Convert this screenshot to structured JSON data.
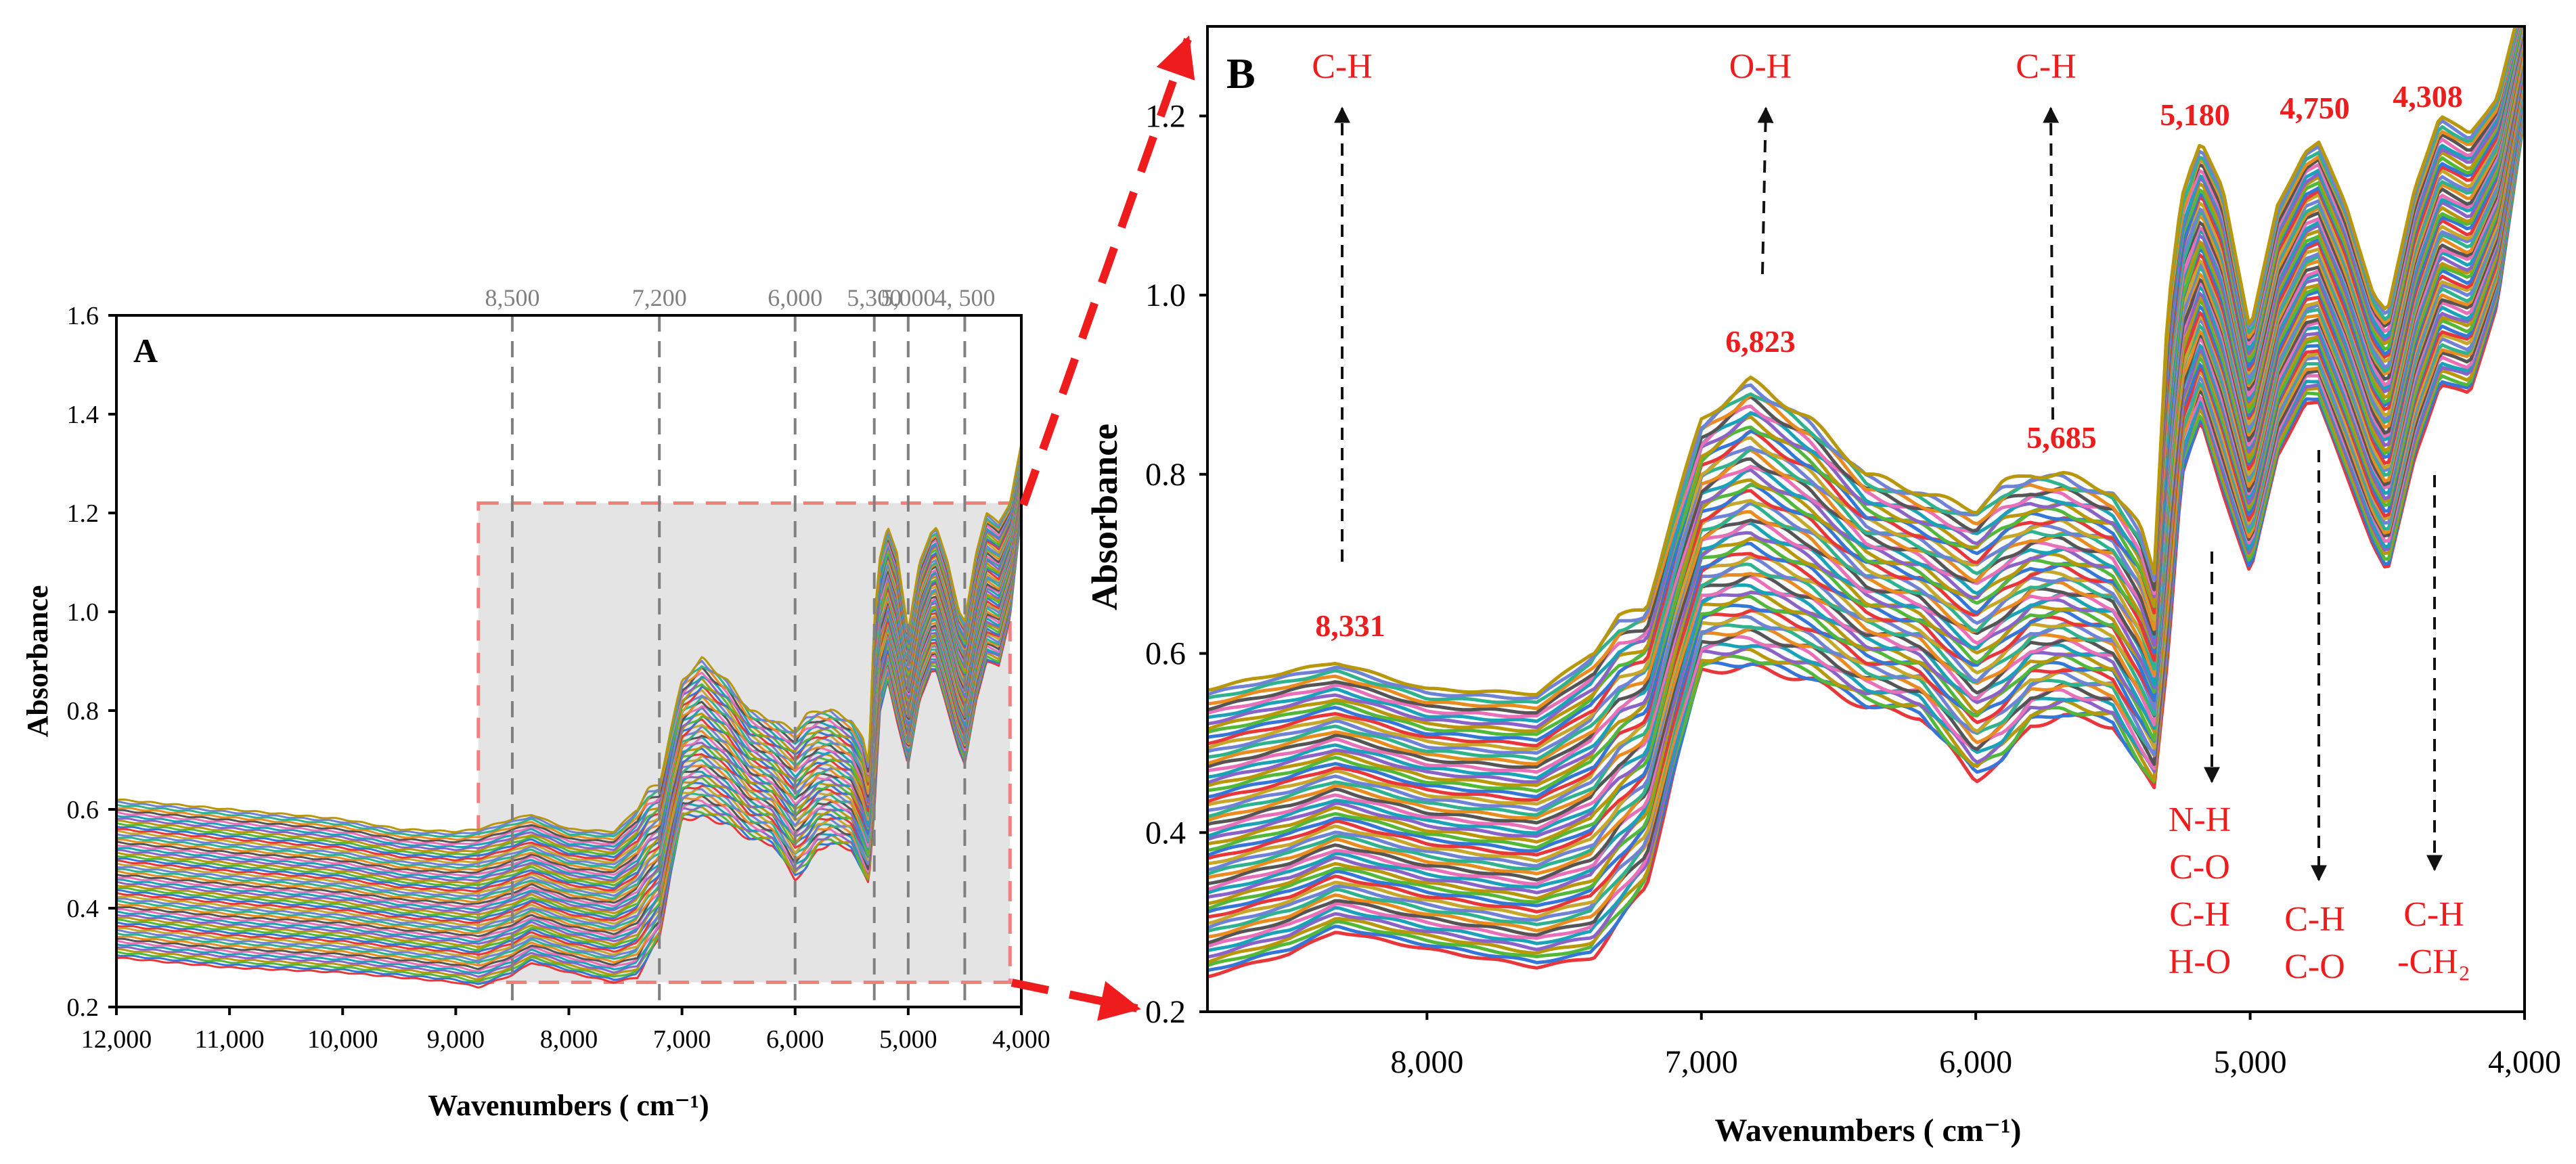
{
  "colors": {
    "annotation": "#ee1c1c",
    "guide": "#808080",
    "inset_fill": "#e4e4e4",
    "inset_border": "#f08080",
    "palette": [
      "#e8363a",
      "#3577d8",
      "#52b83a",
      "#b8970a",
      "#8a63c9",
      "#1aa3b8",
      "#e86fb8",
      "#555555",
      "#e98b1e",
      "#2fb38f",
      "#6f82d6",
      "#c7a72a"
    ]
  },
  "chart_data": [
    {
      "panel": "A",
      "type": "line",
      "title": "",
      "xlabel": "Wavenumbers ( cm⁻¹)",
      "ylabel": "Absorbance",
      "xlim": [
        12000,
        4000
      ],
      "ylim": [
        0.2,
        1.6
      ],
      "x_ticks": [
        12000,
        11000,
        10000,
        9000,
        8000,
        7000,
        6000,
        5000,
        4000
      ],
      "x_tick_labels": [
        "12,000",
        "11,000",
        "10,000",
        "9,000",
        "8,000",
        "7,000",
        "6,000",
        "5,000",
        "4,000"
      ],
      "y_ticks": [
        0.2,
        0.4,
        0.6,
        0.8,
        1.0,
        1.2,
        1.4,
        1.6
      ],
      "y_tick_labels": [
        "0.2",
        "0.4",
        "0.6",
        "0.8",
        "1.0",
        "1.2",
        "1.4",
        "1.6"
      ],
      "grid": false,
      "reference_lines": [
        {
          "x": 8500,
          "label": "8,500"
        },
        {
          "x": 7200,
          "label": "7,200"
        },
        {
          "x": 6000,
          "label": "6,000"
        },
        {
          "x": 5300,
          "label": "5,300"
        },
        {
          "x": 5000,
          "label": "5,000"
        },
        {
          "x": 4500,
          "label": "4, 500"
        }
      ],
      "zoom_region": {
        "x": [
          8800,
          4100
        ],
        "y": [
          0.25,
          1.22
        ]
      },
      "series_note": "many overlapping NIR spectra; baseline (lowest) and upper envelope shown",
      "spectrum": {
        "x": [
          12000,
          11000,
          10000,
          9500,
          9000,
          8800,
          8500,
          8331,
          8000,
          7600,
          7400,
          7300,
          7200,
          7100,
          7000,
          6823,
          6600,
          6400,
          6200,
          6000,
          5900,
          5800,
          5685,
          5500,
          5400,
          5350,
          5300,
          5250,
          5180,
          5100,
          5000,
          4900,
          4800,
          4750,
          4650,
          4550,
          4500,
          4400,
          4308,
          4200,
          4100,
          4000
        ],
        "low": [
          0.3,
          0.28,
          0.27,
          0.26,
          0.25,
          0.24,
          0.265,
          0.29,
          0.27,
          0.25,
          0.26,
          0.3,
          0.34,
          0.47,
          0.58,
          0.585,
          0.57,
          0.54,
          0.53,
          0.46,
          0.48,
          0.52,
          0.53,
          0.52,
          0.47,
          0.45,
          0.6,
          0.8,
          0.86,
          0.78,
          0.69,
          0.82,
          0.88,
          0.88,
          0.8,
          0.72,
          0.69,
          0.82,
          0.9,
          0.89,
          0.99,
          1.2
        ],
        "high": [
          0.62,
          0.6,
          0.58,
          0.56,
          0.555,
          0.56,
          0.58,
          0.59,
          0.56,
          0.555,
          0.6,
          0.64,
          0.65,
          0.76,
          0.86,
          0.905,
          0.86,
          0.8,
          0.78,
          0.76,
          0.79,
          0.8,
          0.8,
          0.78,
          0.74,
          0.69,
          0.99,
          1.11,
          1.17,
          1.12,
          0.96,
          1.1,
          1.16,
          1.17,
          1.1,
          1.0,
          0.98,
          1.12,
          1.2,
          1.18,
          1.22,
          1.34
        ]
      },
      "ref_labels_shown": [
        "8,500",
        "7,200",
        "6,000",
        "5,300",
        "5,000",
        "4, 500"
      ]
    },
    {
      "panel": "B",
      "type": "line",
      "title": "",
      "xlabel": "Wavenumbers ( cm⁻¹)",
      "ylabel": "Absorbance",
      "xlim": [
        8800,
        4000
      ],
      "ylim": [
        0.2,
        1.3
      ],
      "x_ticks": [
        8000,
        7000,
        6000,
        5000,
        4000
      ],
      "x_tick_labels": [
        "8,000",
        "7,000",
        "6,000",
        "5,000",
        "4,000"
      ],
      "y_ticks": [
        0.2,
        0.4,
        0.6,
        0.8,
        1.0,
        1.2
      ],
      "y_tick_labels": [
        "0.2",
        "0.4",
        "0.6",
        "0.8",
        "1.0",
        "1.2"
      ],
      "grid": false,
      "peaks": [
        {
          "x": 8331,
          "label": "8,331"
        },
        {
          "x": 6823,
          "label": "6,823"
        },
        {
          "x": 5685,
          "label": "5,685"
        },
        {
          "x": 5180,
          "label": "5,180"
        },
        {
          "x": 4750,
          "label": "4,750"
        },
        {
          "x": 4308,
          "label": "4,308"
        }
      ],
      "bond_annotations_up": [
        {
          "x": 8331,
          "label": "C-H"
        },
        {
          "x": 6823,
          "label": "O-H"
        },
        {
          "x": 5685,
          "label": "C-H"
        }
      ],
      "bond_annotations_down": [
        {
          "x": 5100,
          "lines": [
            "N-H",
            "C-O",
            "C-H",
            "H-O"
          ]
        },
        {
          "x": 4750,
          "lines": [
            "C-H",
            "C-O"
          ]
        },
        {
          "x": 4308,
          "lines": [
            "C-H",
            "-CH₂"
          ]
        }
      ]
    }
  ],
  "panel_a": {
    "label": "A",
    "x_tick_labels": [
      "12,000",
      "11,000",
      "10,000",
      "9,000",
      "8,000",
      "7,000",
      "6,000",
      "5,000",
      "4,000"
    ],
    "y_tick_labels": [
      "0.2",
      "0.4",
      "0.6",
      "0.8",
      "1.0",
      "1.2",
      "1.4",
      "1.6"
    ],
    "xlabel": "Wavenumbers ( cm⁻¹)",
    "ylabel": "Absorbance",
    "ref_labels": [
      "8,500",
      "7,200",
      "6,000",
      "5,300",
      "5,000",
      "4, 500"
    ]
  },
  "panel_b": {
    "label": "B",
    "x_tick_labels": [
      "8,000",
      "7,000",
      "6,000",
      "5,000",
      "4,000"
    ],
    "y_tick_labels": [
      "0.2",
      "0.4",
      "0.6",
      "0.8",
      "1.0",
      "1.2"
    ],
    "xlabel": "Wavenumbers ( cm⁻¹)",
    "ylabel": "Absorbance",
    "peak_labels": [
      "8,331",
      "6,823",
      "5,685",
      "5,180",
      "4,750",
      "4,308"
    ],
    "bond_up_labels": [
      "C-H",
      "O-H",
      "C-H"
    ],
    "bond_down_group1": [
      "N-H",
      "C-O",
      "C-H",
      "H-O"
    ],
    "bond_down_group2": [
      "C-H",
      "C-O"
    ],
    "bond_down_group3": [
      "C-H",
      "-CH₂"
    ]
  }
}
